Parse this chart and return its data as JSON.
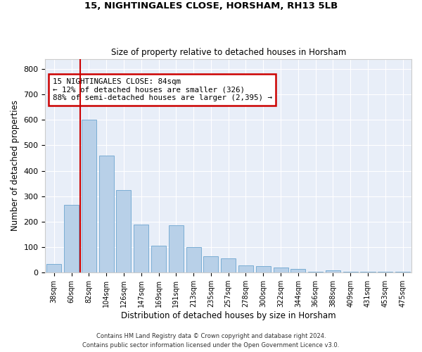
{
  "title1": "15, NIGHTINGALES CLOSE, HORSHAM, RH13 5LB",
  "title2": "Size of property relative to detached houses in Horsham",
  "xlabel": "Distribution of detached houses by size in Horsham",
  "ylabel": "Number of detached properties",
  "categories": [
    "38sqm",
    "60sqm",
    "82sqm",
    "104sqm",
    "126sqm",
    "147sqm",
    "169sqm",
    "191sqm",
    "213sqm",
    "235sqm",
    "257sqm",
    "278sqm",
    "300sqm",
    "322sqm",
    "344sqm",
    "366sqm",
    "388sqm",
    "409sqm",
    "431sqm",
    "453sqm",
    "475sqm"
  ],
  "values": [
    35,
    265,
    600,
    460,
    325,
    190,
    105,
    185,
    100,
    65,
    55,
    28,
    25,
    20,
    15,
    3,
    10,
    3,
    3,
    3,
    3
  ],
  "bar_color": "#b8d0e8",
  "bar_edge_color": "#7aadd4",
  "vline_color": "#cc0000",
  "vline_index": 1.5,
  "annotation_text": "15 NIGHTINGALES CLOSE: 84sqm\n← 12% of detached houses are smaller (326)\n88% of semi-detached houses are larger (2,395) →",
  "annotation_box_color": "#ffffff",
  "annotation_box_edge": "#cc0000",
  "footer1": "Contains HM Land Registry data © Crown copyright and database right 2024.",
  "footer2": "Contains public sector information licensed under the Open Government Licence v3.0.",
  "bg_color": "#e8eef8",
  "ylim": [
    0,
    840
  ],
  "yticks": [
    0,
    100,
    200,
    300,
    400,
    500,
    600,
    700,
    800
  ]
}
